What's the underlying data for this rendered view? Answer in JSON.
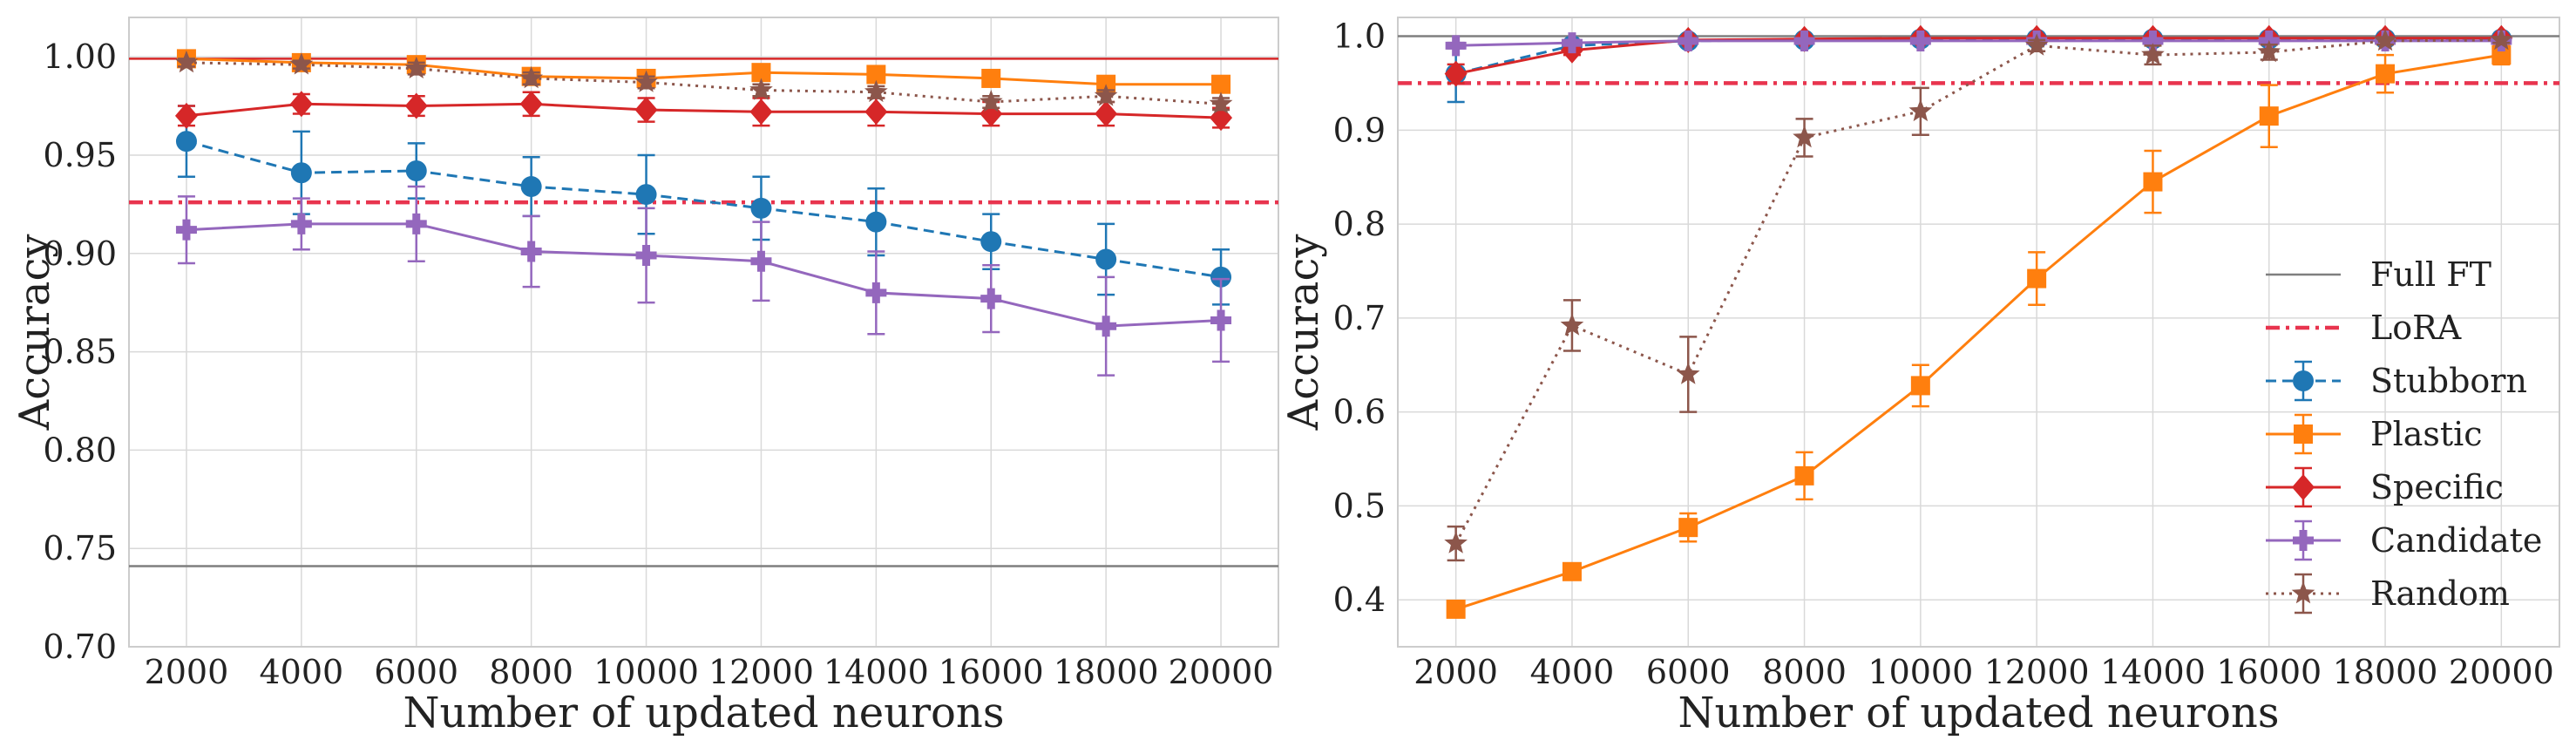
{
  "chart_data": [
    {
      "type": "line",
      "xlabel": "Number of updated neurons",
      "ylabel": "Accuracy",
      "xlim": [
        1000,
        21000
      ],
      "ylim": [
        0.7,
        1.02
      ],
      "x_ticks": [
        2000,
        4000,
        6000,
        8000,
        10000,
        12000,
        14000,
        16000,
        18000,
        20000
      ],
      "y_ticks": [
        0.7,
        0.75,
        0.8,
        0.85,
        0.9,
        0.95,
        1.0
      ],
      "y_tick_labels": [
        "0.70",
        "0.75",
        "0.80",
        "0.85",
        "0.90",
        "0.95",
        "1.00"
      ],
      "grid": true,
      "hlines": [
        {
          "name": "Full FT",
          "value": 0.741,
          "color": "#7f7f7f",
          "style": "solid"
        },
        {
          "name": "Full FT",
          "value": 0.999,
          "color": "#d62728",
          "style": "solid"
        },
        {
          "name": "LoRA",
          "value": 0.926,
          "color": "#e8344e",
          "style": "dashdot"
        }
      ],
      "x": [
        2000,
        4000,
        6000,
        8000,
        10000,
        12000,
        14000,
        16000,
        18000,
        20000
      ],
      "series": [
        {
          "name": "Stubborn",
          "color": "#1f77b4",
          "style": "dashed",
          "marker": "circle",
          "values": [
            0.957,
            0.941,
            0.942,
            0.934,
            0.93,
            0.923,
            0.916,
            0.906,
            0.897,
            0.888
          ],
          "errors": [
            0.018,
            0.021,
            0.014,
            0.015,
            0.02,
            0.016,
            0.017,
            0.014,
            0.018,
            0.014
          ]
        },
        {
          "name": "Plastic",
          "color": "#ff7f0e",
          "style": "solid",
          "marker": "square",
          "values": [
            0.999,
            0.997,
            0.996,
            0.99,
            0.989,
            0.992,
            0.991,
            0.989,
            0.986,
            0.986
          ],
          "errors": [
            0.002,
            0.002,
            0.002,
            0.003,
            0.003,
            0.003,
            0.003,
            0.003,
            0.003,
            0.003
          ]
        },
        {
          "name": "Specific",
          "color": "#d62728",
          "style": "solid",
          "marker": "diamond",
          "values": [
            0.97,
            0.976,
            0.975,
            0.976,
            0.973,
            0.972,
            0.972,
            0.971,
            0.971,
            0.969
          ],
          "errors": [
            0.005,
            0.005,
            0.005,
            0.006,
            0.006,
            0.007,
            0.007,
            0.006,
            0.006,
            0.005
          ]
        },
        {
          "name": "Candidate",
          "color": "#9467bd",
          "style": "solid",
          "marker": "plus",
          "values": [
            0.912,
            0.915,
            0.915,
            0.901,
            0.899,
            0.896,
            0.88,
            0.877,
            0.863,
            0.866
          ],
          "errors": [
            0.017,
            0.013,
            0.019,
            0.018,
            0.024,
            0.02,
            0.021,
            0.017,
            0.025,
            0.021
          ]
        },
        {
          "name": "Random",
          "color": "#8c564b",
          "style": "dotted",
          "marker": "star",
          "values": [
            0.997,
            0.996,
            0.994,
            0.989,
            0.987,
            0.983,
            0.982,
            0.977,
            0.98,
            0.976
          ],
          "errors": [
            0.002,
            0.002,
            0.003,
            0.003,
            0.003,
            0.003,
            0.003,
            0.003,
            0.003,
            0.003
          ]
        }
      ]
    },
    {
      "type": "line",
      "xlabel": "Number of updated neurons",
      "ylabel": "Accuracy",
      "xlim": [
        1000,
        21000
      ],
      "ylim": [
        0.35,
        1.02
      ],
      "x_ticks": [
        2000,
        4000,
        6000,
        8000,
        10000,
        12000,
        14000,
        16000,
        18000,
        20000
      ],
      "y_ticks": [
        0.4,
        0.5,
        0.6,
        0.7,
        0.8,
        0.9,
        1.0
      ],
      "y_tick_labels": [
        "0.4",
        "0.5",
        "0.6",
        "0.7",
        "0.8",
        "0.9",
        "1.0"
      ],
      "grid": true,
      "legend_position": "right",
      "hlines": [
        {
          "name": "Full FT",
          "value": 1.0,
          "color": "#7f7f7f",
          "style": "solid"
        },
        {
          "name": "LoRA",
          "value": 0.95,
          "color": "#e8344e",
          "style": "dashdot"
        }
      ],
      "x": [
        2000,
        4000,
        6000,
        8000,
        10000,
        12000,
        14000,
        16000,
        18000,
        20000
      ],
      "series": [
        {
          "name": "Stubborn",
          "color": "#1f77b4",
          "style": "dashed",
          "marker": "circle",
          "values": [
            0.96,
            0.99,
            0.995,
            0.996,
            0.997,
            0.997,
            0.997,
            0.997,
            0.997,
            0.997
          ],
          "errors": [
            0.03,
            0.005,
            0.003,
            0.002,
            0.002,
            0.002,
            0.002,
            0.002,
            0.002,
            0.002
          ]
        },
        {
          "name": "Plastic",
          "color": "#ff7f0e",
          "style": "solid",
          "marker": "square",
          "values": [
            0.39,
            0.43,
            0.477,
            0.532,
            0.628,
            0.742,
            0.845,
            0.915,
            0.96,
            0.98
          ],
          "errors": [
            0.005,
            0.006,
            0.015,
            0.025,
            0.022,
            0.028,
            0.033,
            0.033,
            0.02,
            0.01
          ]
        },
        {
          "name": "Specific",
          "color": "#d62728",
          "style": "solid",
          "marker": "diamond",
          "values": [
            0.96,
            0.985,
            0.996,
            0.997,
            0.998,
            0.998,
            0.998,
            0.998,
            0.998,
            0.998
          ],
          "errors": [
            0.01,
            0.005,
            0.003,
            0.002,
            0.002,
            0.002,
            0.002,
            0.002,
            0.002,
            0.002
          ]
        },
        {
          "name": "Candidate",
          "color": "#9467bd",
          "style": "solid",
          "marker": "plus",
          "values": [
            0.99,
            0.993,
            0.995,
            0.995,
            0.995,
            0.995,
            0.995,
            0.995,
            0.995,
            0.995
          ],
          "errors": [
            0.003,
            0.003,
            0.002,
            0.002,
            0.002,
            0.002,
            0.002,
            0.002,
            0.002,
            0.002
          ]
        },
        {
          "name": "Random",
          "color": "#8c564b",
          "style": "dotted",
          "marker": "star",
          "values": [
            0.46,
            0.692,
            0.64,
            0.892,
            0.92,
            0.99,
            0.98,
            0.983,
            0.995,
            0.996
          ],
          "errors": [
            0.018,
            0.027,
            0.04,
            0.02,
            0.025,
            0.006,
            0.01,
            0.008,
            0.004,
            0.003
          ]
        }
      ],
      "legend": [
        "Full FT",
        "LoRA",
        "Stubborn",
        "Plastic",
        "Specific",
        "Candidate",
        "Random"
      ]
    }
  ]
}
